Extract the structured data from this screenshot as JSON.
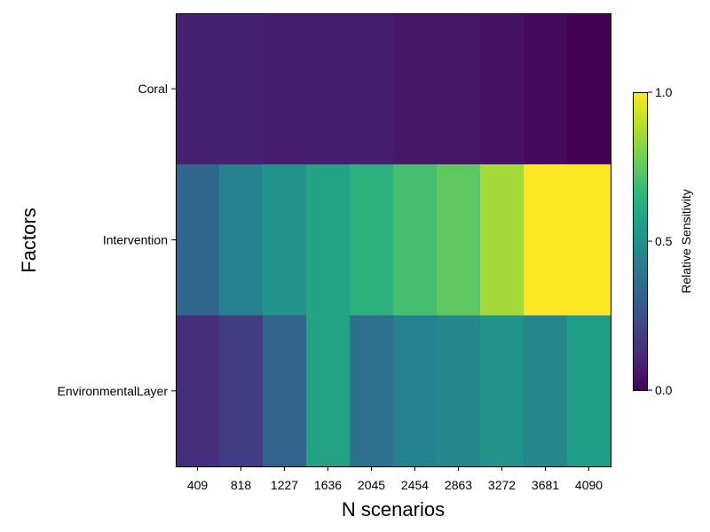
{
  "chart_data": {
    "type": "heatmap",
    "xlabel": "N scenarios",
    "ylabel": "Factors",
    "x": [
      "409",
      "818",
      "1227",
      "1636",
      "2045",
      "2454",
      "2863",
      "3272",
      "3681",
      "4090"
    ],
    "y": [
      "Coral",
      "Intervention",
      "EnvironmentalLayer"
    ],
    "values": [
      [
        0.09,
        0.09,
        0.08,
        0.08,
        0.08,
        0.06,
        0.06,
        0.05,
        0.03,
        0.0
      ],
      [
        0.33,
        0.44,
        0.51,
        0.58,
        0.63,
        0.7,
        0.75,
        0.86,
        1.0,
        1.0
      ],
      [
        0.13,
        0.18,
        0.32,
        0.58,
        0.37,
        0.44,
        0.47,
        0.52,
        0.47,
        0.56
      ]
    ],
    "colormap": "viridis",
    "zlim": [
      0.0,
      1.0
    ],
    "colorbar": {
      "label": "Relative Sensitivity",
      "ticks": [
        "0.0",
        "0.5",
        "1.0"
      ],
      "tick_values": [
        0.0,
        0.5,
        1.0
      ]
    },
    "colors": {
      "viridis_stops": [
        "#440154",
        "#482878",
        "#3e4989",
        "#31688e",
        "#26828e",
        "#1f9e89",
        "#35b779",
        "#6ece58",
        "#b5de2b",
        "#fde725"
      ]
    }
  }
}
